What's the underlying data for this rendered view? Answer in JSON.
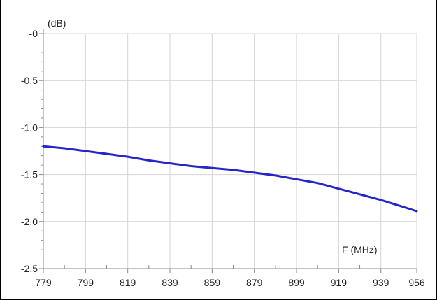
{
  "chart_data": {
    "type": "line",
    "x_axis_label": "F (MHz)",
    "y_axis_label": "(dB)",
    "xlim": [
      779,
      956
    ],
    "ylim": [
      -2.5,
      0
    ],
    "x_ticks": [
      779,
      799,
      819,
      839,
      859,
      879,
      899,
      919,
      939,
      956
    ],
    "x_tick_labels": [
      "779",
      "799",
      "819",
      "839",
      "859",
      "879",
      "899",
      "919",
      "939",
      "956"
    ],
    "y_ticks": [
      0,
      -0.5,
      -1.0,
      -1.5,
      -2.0,
      -2.5
    ],
    "y_tick_labels": [
      "-0",
      "-0.5",
      "-1.0",
      "-1.5",
      "-2.0",
      "-2.5"
    ],
    "grid": true,
    "series": [
      {
        "color": "#2626c8",
        "x": [
          779,
          789,
          799,
          809,
          819,
          829,
          839,
          849,
          859,
          869,
          879,
          889,
          899,
          909,
          919,
          929,
          939,
          949,
          956
        ],
        "y": [
          -1.2,
          -1.22,
          -1.25,
          -1.28,
          -1.31,
          -1.35,
          -1.38,
          -1.41,
          -1.43,
          -1.45,
          -1.48,
          -1.51,
          -1.55,
          -1.59,
          -1.65,
          -1.71,
          -1.77,
          -1.84,
          -1.89
        ]
      }
    ]
  }
}
